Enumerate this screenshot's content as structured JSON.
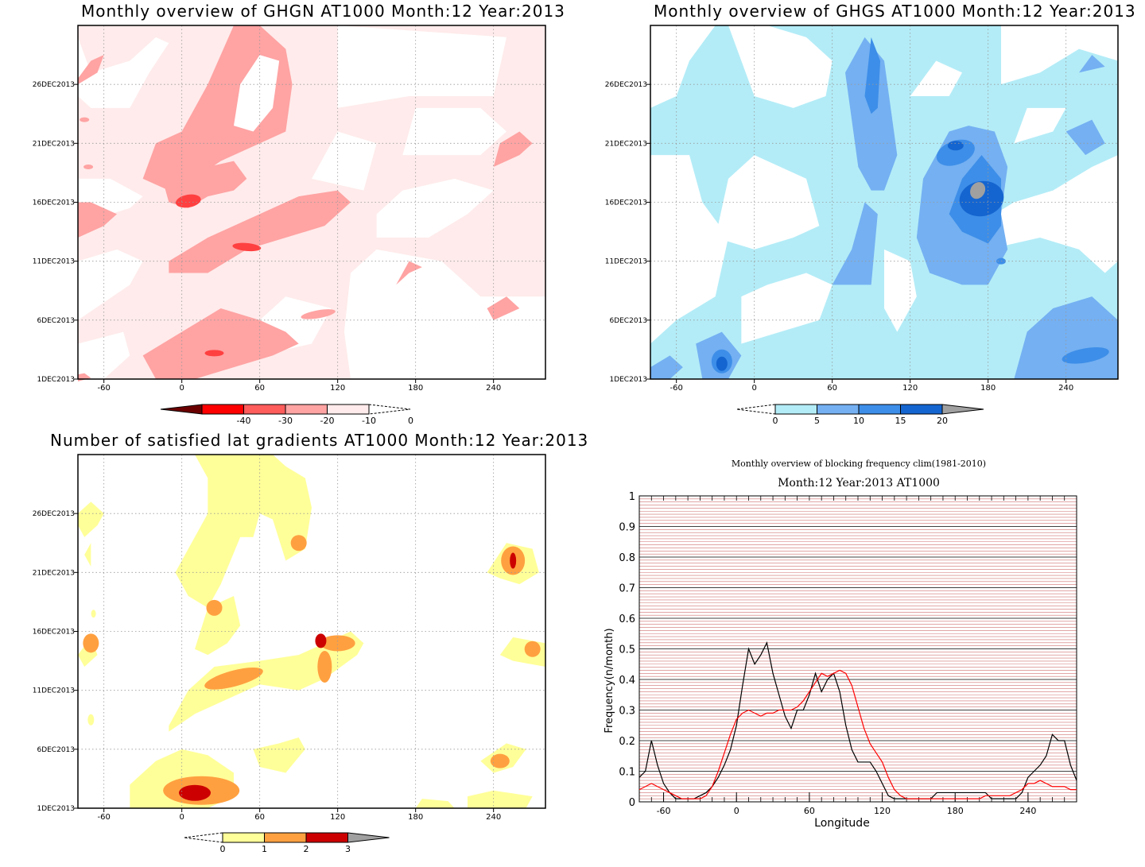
{
  "panels": {
    "ghgn": {
      "title": "Monthly overview of GHGN AT1000 Month:12 Year:2013",
      "y_ticks": [
        "1DEC2013",
        "6DEC2013",
        "11DEC2013",
        "16DEC2013",
        "21DEC2013",
        "26DEC2013"
      ],
      "x_ticks": [
        "-60",
        "0",
        "60",
        "120",
        "180",
        "240"
      ],
      "colorbar": {
        "labels": [
          "-40",
          "-30",
          "-20",
          "-10",
          "0"
        ],
        "colors": [
          "#6b0000",
          "#ff0000",
          "#ff5c5c",
          "#ffa3a3",
          "#ffebeb"
        ]
      }
    },
    "ghgs": {
      "title": "Monthly overview of GHGS AT1000 Month:12 Year:2013",
      "y_ticks": [
        "1DEC2013",
        "6DEC2013",
        "11DEC2013",
        "16DEC2013",
        "21DEC2013",
        "26DEC2013"
      ],
      "x_ticks": [
        "-60",
        "0",
        "60",
        "120",
        "180",
        "240"
      ],
      "colorbar": {
        "labels": [
          "0",
          "5",
          "10",
          "15",
          "20"
        ],
        "colors": [
          "#b3ecf7",
          "#74b0f2",
          "#3d8ee8",
          "#1565d0",
          "#a0a0a0"
        ]
      }
    },
    "nsat": {
      "title": "Number of satisfied lat gradients AT1000 Month:12 Year:2013",
      "y_ticks": [
        "1DEC2013",
        "6DEC2013",
        "11DEC2013",
        "16DEC2013",
        "21DEC2013",
        "26DEC2013"
      ],
      "x_ticks": [
        "-60",
        "0",
        "60",
        "120",
        "180",
        "240"
      ],
      "colorbar": {
        "labels": [
          "0",
          "1",
          "2",
          "3"
        ],
        "colors": [
          "#ffff99",
          "#ffa040",
          "#cc0000",
          "#a0a0a0"
        ]
      }
    },
    "freq": {
      "title": "Monthly overview of blocking frequency clim(1981-2010)",
      "subtitle": "Month:12 Year:2013  AT1000"
    }
  },
  "chart_data": [
    {
      "type": "heatmap",
      "title": "Monthly overview of GHGN AT1000 Month:12 Year:2013",
      "x_axis": {
        "range": [
          -80,
          280
        ],
        "ticks": [
          -60,
          0,
          60,
          120,
          180,
          240
        ]
      },
      "y_axis": {
        "range": [
          "1DEC2013",
          "31DEC2013"
        ],
        "ticks": [
          "1DEC2013",
          "6DEC2013",
          "11DEC2013",
          "16DEC2013",
          "21DEC2013",
          "26DEC2013"
        ]
      },
      "levels": [
        -40,
        -30,
        -20,
        -10,
        0
      ],
      "grid": true,
      "blobs": [
        {
          "lon": 20,
          "day": 26,
          "level": -10
        },
        {
          "lon": 0,
          "day": 20,
          "level": -10
        },
        {
          "lon": 5,
          "day": 16,
          "level": -20
        },
        {
          "lon": 70,
          "day": 13,
          "level": -10
        },
        {
          "lon": 50,
          "day": 12,
          "level": -20
        },
        {
          "lon": 20,
          "day": 3,
          "level": -10
        },
        {
          "lon": 25,
          "day": 3,
          "level": -20
        }
      ]
    },
    {
      "type": "heatmap",
      "title": "Monthly overview of GHGS AT1000 Month:12 Year:2013",
      "x_axis": {
        "range": [
          -80,
          280
        ],
        "ticks": [
          -60,
          0,
          60,
          120,
          180,
          240
        ]
      },
      "y_axis": {
        "range": [
          "1DEC2013",
          "31DEC2013"
        ],
        "ticks": [
          "1DEC2013",
          "6DEC2013",
          "11DEC2013",
          "16DEC2013",
          "21DEC2013",
          "26DEC2013"
        ]
      },
      "levels": [
        0,
        5,
        10,
        15,
        20
      ],
      "grid": true,
      "blobs": [
        {
          "lon": 170,
          "day": 16,
          "level": 20
        },
        {
          "lon": 170,
          "day": 16,
          "level": 15
        },
        {
          "lon": 160,
          "day": 20,
          "level": 15
        },
        {
          "lon": 95,
          "day": 26,
          "level": 10
        },
        {
          "lon": -25,
          "day": 3,
          "level": 10
        },
        {
          "lon": 240,
          "day": 3,
          "level": 10
        }
      ]
    },
    {
      "type": "heatmap",
      "title": "Number of satisfied lat gradients AT1000 Month:12 Year:2013",
      "x_axis": {
        "range": [
          -80,
          280
        ],
        "ticks": [
          -60,
          0,
          60,
          120,
          180,
          240
        ]
      },
      "y_axis": {
        "range": [
          "1DEC2013",
          "31DEC2013"
        ],
        "ticks": [
          "1DEC2013",
          "6DEC2013",
          "11DEC2013",
          "16DEC2013",
          "21DEC2013",
          "26DEC2013"
        ]
      },
      "levels": [
        0,
        1,
        2,
        3
      ],
      "grid": true,
      "blobs": [
        {
          "lon": 10,
          "day": 2,
          "level": 3
        },
        {
          "lon": 110,
          "day": 15,
          "level": 3
        },
        {
          "lon": 255,
          "day": 22,
          "level": 3
        },
        {
          "lon": 40,
          "day": 12,
          "level": 2
        },
        {
          "lon": 120,
          "day": 15,
          "level": 2
        },
        {
          "lon": 255,
          "day": 5,
          "level": 2
        }
      ]
    },
    {
      "type": "line",
      "title": "Monthly overview of blocking frequency clim(1981-2010)",
      "subtitle": "Month:12 Year:2013  AT1000",
      "xlabel": "Longitude",
      "ylabel": "Frequency(n/month)",
      "xlim": [
        -80,
        280
      ],
      "ylim": [
        0,
        1
      ],
      "x_ticks": [
        -60,
        0,
        60,
        120,
        180,
        240
      ],
      "y_ticks": [
        0,
        0.1,
        0.2,
        0.3,
        0.4,
        0.5,
        0.6,
        0.7,
        0.8,
        0.9,
        1
      ],
      "grid": true,
      "series": [
        {
          "color": "#000000",
          "x": [
            -80,
            -75,
            -70,
            -65,
            -60,
            -55,
            -50,
            -45,
            -40,
            -35,
            -30,
            -25,
            -20,
            -15,
            -10,
            -5,
            0,
            5,
            10,
            15,
            20,
            25,
            30,
            35,
            40,
            45,
            50,
            55,
            60,
            65,
            70,
            75,
            80,
            85,
            90,
            95,
            100,
            105,
            110,
            115,
            120,
            125,
            130,
            135,
            140,
            145,
            150,
            155,
            160,
            165,
            170,
            175,
            180,
            185,
            190,
            195,
            200,
            205,
            210,
            215,
            220,
            225,
            230,
            235,
            240,
            245,
            250,
            255,
            260,
            265,
            270,
            275,
            280
          ],
          "y": [
            0.08,
            0.1,
            0.2,
            0.12,
            0.06,
            0.03,
            0.01,
            0.01,
            0.01,
            0.01,
            0.02,
            0.03,
            0.05,
            0.08,
            0.12,
            0.17,
            0.25,
            0.38,
            0.5,
            0.45,
            0.48,
            0.52,
            0.42,
            0.35,
            0.28,
            0.24,
            0.3,
            0.3,
            0.35,
            0.42,
            0.36,
            0.4,
            0.42,
            0.36,
            0.25,
            0.17,
            0.13,
            0.13,
            0.13,
            0.1,
            0.06,
            0.02,
            0.01,
            0.01,
            0.01,
            0.01,
            0.01,
            0.01,
            0.01,
            0.03,
            0.03,
            0.03,
            0.03,
            0.03,
            0.03,
            0.03,
            0.03,
            0.03,
            0.01,
            0.01,
            0.01,
            0.01,
            0.01,
            0.03,
            0.08,
            0.1,
            0.12,
            0.15,
            0.22,
            0.2,
            0.2,
            0.12,
            0.07
          ]
        },
        {
          "color": "#ff0000",
          "x": [
            -80,
            -75,
            -70,
            -65,
            -60,
            -55,
            -50,
            -45,
            -40,
            -35,
            -30,
            -25,
            -20,
            -15,
            -10,
            -5,
            0,
            5,
            10,
            15,
            20,
            25,
            30,
            35,
            40,
            45,
            50,
            55,
            60,
            65,
            70,
            75,
            80,
            85,
            90,
            95,
            100,
            105,
            110,
            115,
            120,
            125,
            130,
            135,
            140,
            145,
            150,
            155,
            160,
            165,
            170,
            175,
            180,
            185,
            190,
            195,
            200,
            205,
            210,
            215,
            220,
            225,
            230,
            235,
            240,
            245,
            250,
            255,
            260,
            265,
            270,
            275,
            280
          ],
          "y": [
            0.04,
            0.05,
            0.06,
            0.05,
            0.04,
            0.03,
            0.02,
            0.01,
            0.01,
            0.01,
            0.01,
            0.02,
            0.05,
            0.1,
            0.16,
            0.22,
            0.27,
            0.29,
            0.3,
            0.29,
            0.28,
            0.29,
            0.29,
            0.3,
            0.3,
            0.3,
            0.31,
            0.33,
            0.36,
            0.39,
            0.42,
            0.41,
            0.42,
            0.43,
            0.42,
            0.38,
            0.31,
            0.24,
            0.19,
            0.16,
            0.13,
            0.08,
            0.04,
            0.02,
            0.01,
            0.01,
            0.01,
            0.01,
            0.01,
            0.01,
            0.01,
            0.01,
            0.01,
            0.01,
            0.01,
            0.01,
            0.01,
            0.02,
            0.02,
            0.02,
            0.02,
            0.02,
            0.03,
            0.04,
            0.06,
            0.06,
            0.07,
            0.06,
            0.05,
            0.05,
            0.05,
            0.04,
            0.04
          ]
        }
      ]
    }
  ]
}
